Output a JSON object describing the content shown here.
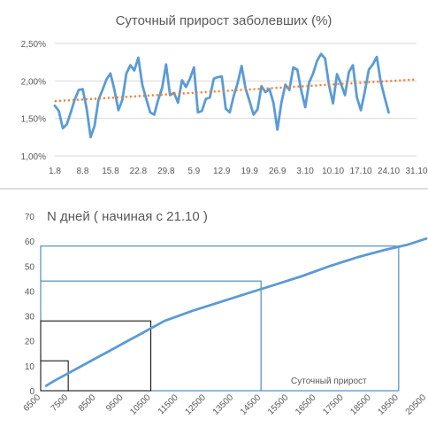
{
  "colors": {
    "series": "#5b9bd5",
    "trend": "#ed7d31",
    "grid": "#d9d9d9",
    "text": "#595959",
    "box_blue": "#2e75b6",
    "box_black": "#000000",
    "separator": "#bfbfbf"
  },
  "chart_data": [
    {
      "type": "line",
      "title": "Суточный прирост заболевших  (%)",
      "xlabel": "",
      "ylabel": "",
      "ylim": [
        0.01,
        0.025
      ],
      "yticks": [
        0.01,
        0.015,
        0.02,
        0.025
      ],
      "ytick_labels": [
        "1,00%",
        "1,50%",
        "2,00%",
        "2,50%"
      ],
      "xlim": [
        0,
        91
      ],
      "xticks": [
        0,
        7,
        14,
        21,
        28,
        35,
        42,
        49,
        56,
        63,
        70,
        77,
        84,
        91
      ],
      "xtick_labels": [
        "1.8",
        "8.8",
        "15.8",
        "22.8",
        "29.8",
        "5.9",
        "12.9",
        "19.9",
        "26.9",
        "3.10",
        "10.10",
        "17.10",
        "24.10",
        "31.10"
      ],
      "grid": "horizontal",
      "series": [
        {
          "values": [
            0.0167,
            0.016,
            0.0137,
            0.0142,
            0.0158,
            0.0175,
            0.0188,
            0.0189,
            0.0163,
            0.0125,
            0.014,
            0.0175,
            0.0188,
            0.0202,
            0.021,
            0.0188,
            0.0161,
            0.0175,
            0.021,
            0.0221,
            0.0214,
            0.0231,
            0.0195,
            0.0176,
            0.0158,
            0.0155,
            0.0175,
            0.0191,
            0.0222,
            0.0181,
            0.0184,
            0.0171,
            0.0201,
            0.0192,
            0.0203,
            0.0218,
            0.0158,
            0.016,
            0.0176,
            0.0178,
            0.0203,
            0.0205,
            0.0206,
            0.0163,
            0.0158,
            0.018,
            0.0197,
            0.022,
            0.019,
            0.0173,
            0.0155,
            0.0162,
            0.0193,
            0.0185,
            0.0189,
            0.0171,
            0.0135,
            0.0171,
            0.0195,
            0.0188,
            0.0218,
            0.0215,
            0.0187,
            0.0165,
            0.0198,
            0.021,
            0.0227,
            0.0236,
            0.023,
            0.0194,
            0.017,
            0.0209,
            0.0196,
            0.0181,
            0.0212,
            0.0221,
            0.0178,
            0.0161,
            0.0186,
            0.0215,
            0.0222,
            0.0232,
            0.0199,
            0.0178,
            0.0158
          ]
        }
      ],
      "trendline": {
        "kind": "linear",
        "start": [
          0,
          0.0173
        ],
        "end": [
          91,
          0.0202
        ]
      }
    },
    {
      "type": "line",
      "title": "N дней ( начиная с 21.10 )",
      "xlabel": "",
      "ylabel": "",
      "xlim": [
        6500,
        20500
      ],
      "ylim": [
        0,
        70
      ],
      "xticks": [
        6500,
        7500,
        8500,
        9500,
        10500,
        11500,
        12500,
        13500,
        14500,
        15500,
        16500,
        17500,
        18500,
        19500,
        20500
      ],
      "xtick_labels": [
        "6500",
        "7500",
        "8500",
        "9500",
        "10500",
        "11500",
        "12500",
        "13500",
        "14500",
        "15500",
        "16500",
        "17500",
        "18500",
        "19500",
        "20500"
      ],
      "yticks": [
        0,
        10,
        20,
        30,
        40,
        50,
        60,
        70
      ],
      "ytick_labels": [
        "0",
        "10",
        "20",
        "30",
        "40",
        "50",
        "60",
        "70"
      ],
      "grid": false,
      "series": [
        {
          "x": [
            6700,
            7000,
            7500,
            8000,
            8500,
            9000,
            9500,
            10000,
            10500,
            11000,
            12000,
            13000,
            14000,
            15000,
            16000,
            17000,
            18000,
            19000,
            19800,
            20500
          ],
          "y": [
            2,
            4,
            7,
            10,
            13,
            16,
            19,
            22,
            25,
            28,
            32,
            35.5,
            39,
            42.5,
            46,
            50,
            53.5,
            56.5,
            58.5,
            61
          ]
        }
      ],
      "reference_boxes": [
        {
          "x": [
            6500,
            19500
          ],
          "y": [
            0,
            58
          ],
          "color": "blue"
        },
        {
          "x": [
            6500,
            14500
          ],
          "y": [
            0,
            44
          ],
          "color": "blue"
        },
        {
          "x": [
            6500,
            10500
          ],
          "y": [
            0,
            28
          ],
          "color": "black"
        },
        {
          "x": [
            6500,
            7500
          ],
          "y": [
            0,
            12
          ],
          "color": "black"
        }
      ],
      "annotation": "Суточный прирост"
    }
  ]
}
